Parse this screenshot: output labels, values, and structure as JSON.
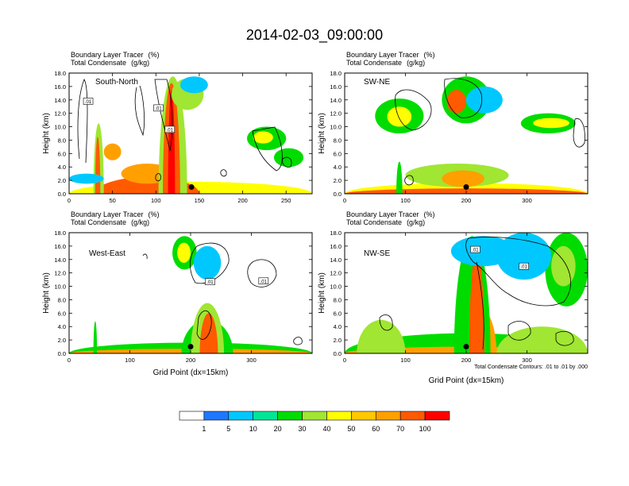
{
  "title": "2014-02-03_09:00:00",
  "common": {
    "var1": "Boundary Layer Tracer",
    "var1_units": "(%)",
    "var2": "Total Condensate",
    "var2_units": "(g/kg)",
    "ylabel": "Height (km)",
    "xlabel": "Grid Point (dx=15km)",
    "contour_note": "Total Condensate Contours: .01 to .01 by .000",
    "contour_label": ".01"
  },
  "colorbar": {
    "levels": [
      "1",
      "5",
      "10",
      "20",
      "30",
      "40",
      "50",
      "60",
      "70",
      "100"
    ],
    "colors": [
      "#ffffff",
      "#1e78ff",
      "#00c8ff",
      "#00e696",
      "#00dc00",
      "#a0e632",
      "#ffff00",
      "#ffc800",
      "#ffa000",
      "#ff5a00",
      "#ff0000"
    ]
  },
  "chart_data": [
    {
      "type": "heatmap",
      "label": "South-North",
      "xlim": [
        0,
        280
      ],
      "ylim": [
        0,
        18
      ],
      "xticks": [
        "0",
        "50",
        "100",
        "150",
        "200",
        "250"
      ],
      "xtick_values": [
        0,
        50,
        100,
        150,
        200,
        250
      ],
      "yticks": [
        "0.0",
        "2.0",
        "4.0",
        "6.0",
        "8.0",
        "10.0",
        "12.0",
        "14.0",
        "16.0",
        "18.0"
      ],
      "marker": {
        "x": 141,
        "y": 1.0
      },
      "contour_labels": [
        {
          "x": 22,
          "y": 13.8
        },
        {
          "x": 103,
          "y": 12.8
        },
        {
          "x": 116,
          "y": 9.6
        }
      ],
      "features": [
        {
          "value": 40,
          "x0": 0,
          "x1": 280,
          "y0": 0,
          "y1": 1.8
        },
        {
          "value": 70,
          "x0": 30,
          "x1": 150,
          "y0": 0,
          "y1": 2.5
        },
        {
          "value": 60,
          "x0": 60,
          "x1": 120,
          "y0": 1.5,
          "y1": 4.5
        },
        {
          "value": 30,
          "x0": 28,
          "x1": 40,
          "y0": 0,
          "y1": 10.5
        },
        {
          "value": 70,
          "x0": 30,
          "x1": 36,
          "y0": 0,
          "y1": 8.5
        },
        {
          "value": 60,
          "x0": 40,
          "x1": 60,
          "y0": 5.0,
          "y1": 7.5
        },
        {
          "value": 30,
          "x0": 103,
          "x1": 136,
          "y0": 0,
          "y1": 17.5
        },
        {
          "value": 70,
          "x0": 108,
          "x1": 128,
          "y0": 0,
          "y1": 16.5
        },
        {
          "value": 100,
          "x0": 114,
          "x1": 122,
          "y0": 0,
          "y1": 15.5
        },
        {
          "value": 30,
          "x0": 118,
          "x1": 155,
          "y0": 12.5,
          "y1": 17.2
        },
        {
          "value": 5,
          "x0": 128,
          "x1": 160,
          "y0": 15.0,
          "y1": 17.5
        },
        {
          "value": 20,
          "x0": 205,
          "x1": 250,
          "y0": 6.5,
          "y1": 10.0
        },
        {
          "value": 40,
          "x0": 212,
          "x1": 235,
          "y0": 7.5,
          "y1": 9.3
        },
        {
          "value": 20,
          "x0": 236,
          "x1": 270,
          "y0": 4.0,
          "y1": 6.8
        },
        {
          "value": 5,
          "x0": 0,
          "x1": 40,
          "y0": 1.5,
          "y1": 3.0
        }
      ]
    },
    {
      "type": "heatmap",
      "label": "SW-NE",
      "xlim": [
        0,
        400
      ],
      "ylim": [
        0,
        18
      ],
      "xticks": [
        "0",
        "100",
        "200",
        "300"
      ],
      "xtick_values": [
        0,
        100,
        200,
        300
      ],
      "yticks": [
        "0.0",
        "2.0",
        "4.0",
        "6.0",
        "8.0",
        "10.0",
        "12.0",
        "14.0",
        "16.0",
        "18.0"
      ],
      "marker": {
        "x": 200,
        "y": 1.0
      },
      "contour_labels": [],
      "features": [
        {
          "value": 40,
          "x0": 0,
          "x1": 400,
          "y0": 0,
          "y1": 1.6
        },
        {
          "value": 70,
          "x0": 0,
          "x1": 400,
          "y0": 0,
          "y1": 0.8
        },
        {
          "value": 30,
          "x0": 100,
          "x1": 270,
          "y0": 1.0,
          "y1": 4.5
        },
        {
          "value": 60,
          "x0": 160,
          "x1": 230,
          "y0": 1.0,
          "y1": 3.5
        },
        {
          "value": 20,
          "x0": 85,
          "x1": 95,
          "y0": 0,
          "y1": 4.8
        },
        {
          "value": 20,
          "x0": 50,
          "x1": 130,
          "y0": 9.0,
          "y1": 14.2
        },
        {
          "value": 40,
          "x0": 70,
          "x1": 110,
          "y0": 10.0,
          "y1": 13.0
        },
        {
          "value": 20,
          "x0": 160,
          "x1": 240,
          "y0": 10.5,
          "y1": 17.5
        },
        {
          "value": 70,
          "x0": 168,
          "x1": 200,
          "y0": 12.0,
          "y1": 15.5
        },
        {
          "value": 5,
          "x0": 200,
          "x1": 260,
          "y0": 12.0,
          "y1": 16.0
        },
        {
          "value": 20,
          "x0": 290,
          "x1": 380,
          "y0": 9.0,
          "y1": 12.0
        },
        {
          "value": 40,
          "x0": 310,
          "x1": 370,
          "y0": 9.8,
          "y1": 11.3
        }
      ]
    },
    {
      "type": "heatmap",
      "label": "West-East",
      "xlim": [
        0,
        400
      ],
      "ylim": [
        0,
        18
      ],
      "xticks": [
        "0",
        "100",
        "200",
        "300"
      ],
      "xtick_values": [
        0,
        100,
        200,
        300
      ],
      "yticks": [
        "0.0",
        "2.0",
        "4.0",
        "6.0",
        "8.0",
        "10.0",
        "12.0",
        "14.0",
        "16.0",
        "18.0"
      ],
      "marker": {
        "x": 200,
        "y": 1.0
      },
      "contour_labels": [
        {
          "x": 232,
          "y": 10.7
        },
        {
          "x": 320,
          "y": 10.8
        }
      ],
      "features": [
        {
          "value": 20,
          "x0": 0,
          "x1": 400,
          "y0": 0,
          "y1": 1.6
        },
        {
          "value": 60,
          "x0": 0,
          "x1": 400,
          "y0": 0,
          "y1": 0.7
        },
        {
          "value": 20,
          "x0": 40,
          "x1": 46,
          "y0": 0,
          "y1": 4.8
        },
        {
          "value": 20,
          "x0": 185,
          "x1": 270,
          "y0": 0,
          "y1": 5.0
        },
        {
          "value": 30,
          "x0": 200,
          "x1": 255,
          "y0": 0,
          "y1": 7.5
        },
        {
          "value": 70,
          "x0": 215,
          "x1": 245,
          "y0": 0,
          "y1": 6.0
        },
        {
          "value": 20,
          "x0": 170,
          "x1": 210,
          "y0": 12.5,
          "y1": 17.5
        },
        {
          "value": 40,
          "x0": 178,
          "x1": 200,
          "y0": 13.5,
          "y1": 16.5
        },
        {
          "value": 5,
          "x0": 205,
          "x1": 250,
          "y0": 11.0,
          "y1": 16.0
        }
      ]
    },
    {
      "type": "heatmap",
      "label": "NW-SE",
      "xlim": [
        0,
        400
      ],
      "ylim": [
        0,
        18
      ],
      "xticks": [
        "0",
        "100",
        "200",
        "300"
      ],
      "xtick_values": [
        0,
        100,
        200,
        300
      ],
      "yticks": [
        "0.0",
        "2.0",
        "4.0",
        "6.0",
        "8.0",
        "10.0",
        "12.0",
        "14.0",
        "16.0",
        "18.0"
      ],
      "marker": {
        "x": 200,
        "y": 1.0
      },
      "contour_labels": [
        {
          "x": 215,
          "y": 15.5
        },
        {
          "x": 295,
          "y": 13.0
        }
      ],
      "features": [
        {
          "value": 20,
          "x0": 0,
          "x1": 400,
          "y0": 0,
          "y1": 3.0
        },
        {
          "value": 60,
          "x0": 0,
          "x1": 400,
          "y0": 0,
          "y1": 1.0
        },
        {
          "value": 30,
          "x0": 20,
          "x1": 100,
          "y0": 0,
          "y1": 5.0
        },
        {
          "value": 60,
          "x0": 190,
          "x1": 250,
          "y0": 0,
          "y1": 7.0
        },
        {
          "value": 30,
          "x0": 250,
          "x1": 400,
          "y0": 0,
          "y1": 4.0
        },
        {
          "value": 20,
          "x0": 180,
          "x1": 240,
          "y0": 0,
          "y1": 17.5
        },
        {
          "value": 70,
          "x0": 205,
          "x1": 230,
          "y0": 0,
          "y1": 15.5
        },
        {
          "value": 5,
          "x0": 175,
          "x1": 280,
          "y0": 13.0,
          "y1": 17.5
        },
        {
          "value": 20,
          "x0": 330,
          "x1": 400,
          "y0": 7.0,
          "y1": 18.0
        },
        {
          "value": 30,
          "x0": 340,
          "x1": 380,
          "y0": 10.0,
          "y1": 16.0
        },
        {
          "value": 5,
          "x0": 250,
          "x1": 340,
          "y0": 11.0,
          "y1": 18.0
        }
      ]
    }
  ]
}
